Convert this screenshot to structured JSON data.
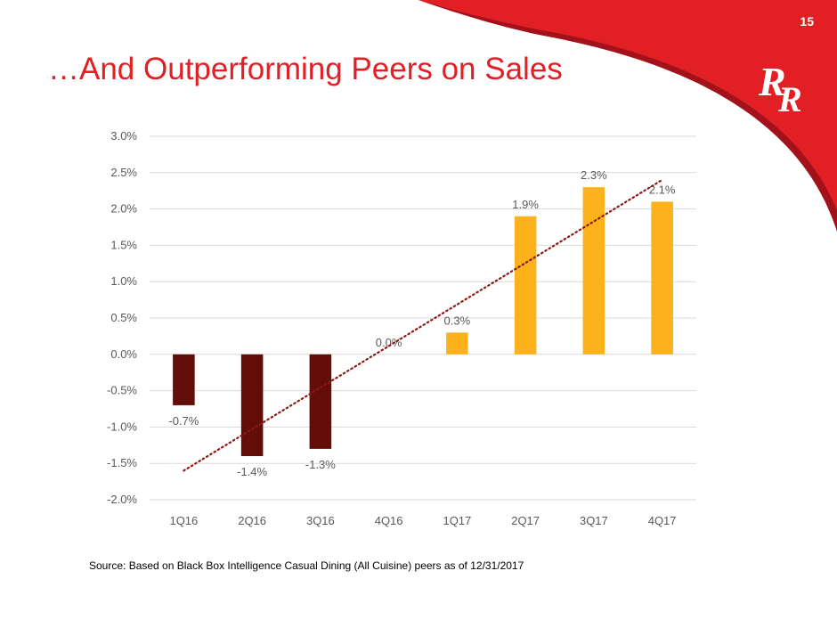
{
  "page": {
    "number": "15",
    "title": "…And Outperforming Peers on Sales",
    "source_note": "Source: Based on Black Box Intelligence Casual Dining (All Cuisine) peers as of 12/31/2017",
    "logo_icon": "red-robin-rr-logo",
    "brand_red": "#e31f26",
    "brand_dark_red": "#a3121a"
  },
  "chart_data": {
    "type": "bar",
    "title": "",
    "xlabel": "",
    "ylabel": "",
    "categories": [
      "1Q16",
      "2Q16",
      "3Q16",
      "4Q16",
      "1Q17",
      "2Q17",
      "3Q17",
      "4Q17"
    ],
    "values": [
      -0.7,
      -1.4,
      -1.3,
      0.0,
      0.3,
      1.9,
      2.3,
      2.1
    ],
    "data_labels": [
      "-0.7%",
      "-1.4%",
      "-1.3%",
      "0.0%",
      "0.3%",
      "1.9%",
      "2.3%",
      "2.1%"
    ],
    "ylim": [
      -2.0,
      3.0
    ],
    "y_ticks": [
      3.0,
      2.5,
      2.0,
      1.5,
      1.0,
      0.5,
      0.0,
      -0.5,
      -1.0,
      -1.5,
      -2.0
    ],
    "y_tick_labels": [
      "3.0%",
      "2.5%",
      "2.0%",
      "1.5%",
      "1.0%",
      "0.5%",
      "0.0%",
      "-0.5%",
      "-1.0%",
      "-1.5%",
      "-2.0%"
    ],
    "bar_colors": [
      "#620d07",
      "#620d07",
      "#620d07",
      "#620d07",
      "#fbb21d",
      "#fbb21d",
      "#fbb21d",
      "#fbb21d"
    ],
    "grid": true,
    "trendline": {
      "type": "linear",
      "style": "dotted",
      "color": "#8b1a14"
    }
  }
}
